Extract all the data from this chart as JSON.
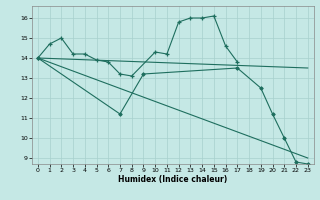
{
  "xlabel": "Humidex (Indice chaleur)",
  "xlim": [
    -0.5,
    23.5
  ],
  "ylim": [
    8.7,
    16.6
  ],
  "yticks": [
    9,
    10,
    11,
    12,
    13,
    14,
    15,
    16
  ],
  "xticks": [
    0,
    1,
    2,
    3,
    4,
    5,
    6,
    7,
    8,
    9,
    10,
    11,
    12,
    13,
    14,
    15,
    16,
    17,
    18,
    19,
    20,
    21,
    22,
    23
  ],
  "bg_color": "#c5e8e5",
  "grid_color": "#a8d0ce",
  "line_color": "#1e6e5e",
  "line1_x": [
    0,
    1,
    2,
    3,
    4,
    5,
    6,
    7,
    8,
    10,
    11,
    12,
    13,
    14,
    15,
    16,
    17
  ],
  "line1_y": [
    14.0,
    14.7,
    15.0,
    14.2,
    14.2,
    13.9,
    13.8,
    13.2,
    13.1,
    14.3,
    14.2,
    15.8,
    16.0,
    16.0,
    16.1,
    14.6,
    13.8
  ],
  "line2_x": [
    0,
    7,
    9,
    17,
    19,
    20,
    21,
    22,
    23
  ],
  "line2_y": [
    14.0,
    11.2,
    13.2,
    13.5,
    12.5,
    11.2,
    10.0,
    8.8,
    8.7
  ],
  "line3_x": [
    0,
    23
  ],
  "line3_y": [
    14.0,
    13.5
  ],
  "line4_x": [
    0,
    23
  ],
  "line4_y": [
    14.0,
    9.0
  ]
}
